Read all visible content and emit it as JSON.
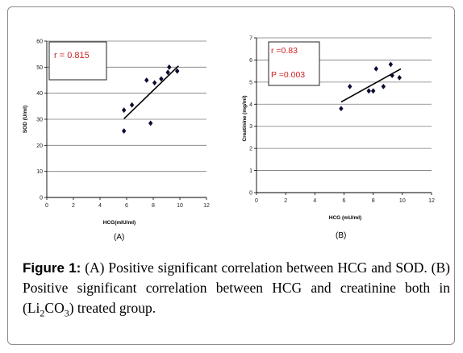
{
  "chart_data": [
    {
      "type": "scatter",
      "panel": "(A)",
      "xlabel": "HCG(mIU/ml)",
      "ylabel": "SOD (U/ml)",
      "xlim": [
        0,
        12
      ],
      "ylim": [
        0,
        60
      ],
      "xticks": [
        0,
        2,
        4,
        6,
        8,
        10,
        12
      ],
      "yticks": [
        0,
        10,
        20,
        30,
        40,
        50,
        60
      ],
      "grid": "horizontal",
      "annotations": [
        "r = 0.815"
      ],
      "points": [
        {
          "x": 5.8,
          "y": 25.5
        },
        {
          "x": 5.8,
          "y": 33.5
        },
        {
          "x": 6.4,
          "y": 35.5
        },
        {
          "x": 7.5,
          "y": 45
        },
        {
          "x": 7.8,
          "y": 28.5
        },
        {
          "x": 8.1,
          "y": 44
        },
        {
          "x": 8.6,
          "y": 45.5
        },
        {
          "x": 9.1,
          "y": 48
        },
        {
          "x": 9.2,
          "y": 50
        },
        {
          "x": 9.8,
          "y": 48.5
        }
      ],
      "trendline": {
        "x": [
          5.8,
          9.9
        ],
        "y": [
          30.2,
          50.5
        ]
      }
    },
    {
      "type": "scatter",
      "panel": "(B)",
      "xlabel": "HCG (mU/ml)",
      "ylabel": "Creatinine (mg/ml)",
      "xlim": [
        0,
        12
      ],
      "ylim": [
        0,
        7
      ],
      "xticks": [
        0,
        2,
        4,
        6,
        8,
        10,
        12
      ],
      "yticks": [
        0,
        1,
        2,
        3,
        4,
        5,
        6,
        7
      ],
      "grid": "horizontal",
      "annotations": [
        "r =0.83",
        "P =0.003"
      ],
      "points": [
        {
          "x": 5.8,
          "y": 3.8
        },
        {
          "x": 6.4,
          "y": 4.8
        },
        {
          "x": 7.7,
          "y": 4.6
        },
        {
          "x": 8.0,
          "y": 4.6
        },
        {
          "x": 8.2,
          "y": 5.6
        },
        {
          "x": 8.7,
          "y": 4.8
        },
        {
          "x": 9.2,
          "y": 5.8
        },
        {
          "x": 9.3,
          "y": 5.3
        },
        {
          "x": 9.8,
          "y": 5.2
        }
      ],
      "trendline": {
        "x": [
          5.8,
          9.9
        ],
        "y": [
          4.1,
          5.6
        ]
      }
    }
  ],
  "caption": {
    "figure_label": "Figure 1:",
    "text_1": " (A) Positive significant correlation between HCG and SOD. (B) Positive significant correlation between HCG and creatinine both in (Li",
    "sub_1": "2",
    "text_2": "CO",
    "sub_2": "3",
    "text_3": ") treated group."
  },
  "colors": {
    "marker": "#0b0b33",
    "trendline": "#000000",
    "annotation_text": "#cc2222",
    "grid": "#7a7a7a"
  }
}
